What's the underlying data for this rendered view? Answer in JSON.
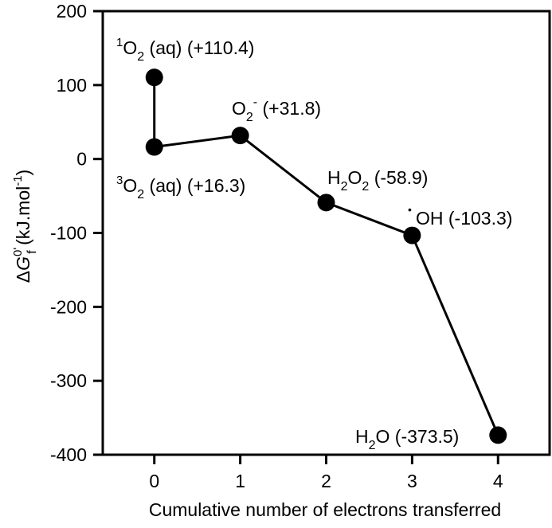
{
  "chart_data": {
    "type": "line",
    "xlabel": "Cumulative number of electrons transferred",
    "ylabel": {
      "prefix": "Δ",
      "var": "G",
      "sup": "0'",
      "sub": "f",
      "units": " (kJ.mol",
      "units_sup": "-1",
      "units_close": ")"
    },
    "xlim": [
      -0.6,
      4.6
    ],
    "ylim": [
      -400,
      200
    ],
    "xticks": [
      "0",
      "1",
      "2",
      "3",
      "4"
    ],
    "yticks": [
      "200",
      "100",
      "0",
      "-100",
      "-200",
      "-300",
      "-400"
    ],
    "grid": false,
    "points": [
      {
        "species": "singlet-O2",
        "x": 0,
        "y": 110.4,
        "value_text": "(+110.4)"
      },
      {
        "species": "triplet-O2",
        "x": 0,
        "y": 16.3,
        "value_text": "(+16.3)"
      },
      {
        "species": "superoxide",
        "x": 1,
        "y": 31.8,
        "value_text": "(+31.8)"
      },
      {
        "species": "hydrogen-peroxide",
        "x": 2,
        "y": -58.9,
        "value_text": "(-58.9)"
      },
      {
        "species": "hydroxyl-radical",
        "x": 3,
        "y": -103.3,
        "value_text": "(-103.3)"
      },
      {
        "species": "water",
        "x": 4,
        "y": -373.5,
        "value_text": "(-373.5)"
      }
    ],
    "path_order": [
      0,
      1,
      2,
      3,
      4,
      5
    ],
    "labels": {
      "singlet": {
        "sup": "1",
        "main": "O",
        "sub": "2",
        "rest": " (aq) (+110.4)"
      },
      "triplet": {
        "sup": "3",
        "main": "O",
        "sub": "2",
        "rest": " (aq) (+16.3)"
      },
      "superoxide": {
        "main": "O",
        "sub": "2",
        "sup": "-",
        "rest": " (+31.8)"
      },
      "peroxide": {
        "main1": "H",
        "sub1": "2",
        "main2": "O",
        "sub2": "2",
        "rest": " (-58.9)"
      },
      "hydroxyl": {
        "dot": "•",
        "rest": "OH (-103.3)"
      },
      "water": {
        "rest": "H2O (-373.5)"
      }
    }
  }
}
